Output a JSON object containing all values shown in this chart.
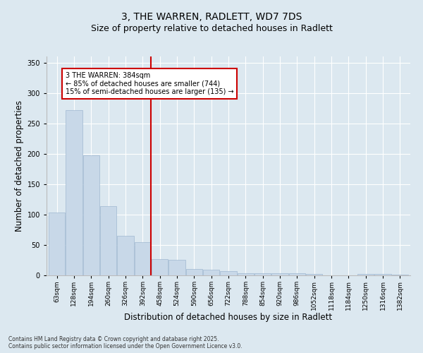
{
  "title1": "3, THE WARREN, RADLETT, WD7 7DS",
  "title2": "Size of property relative to detached houses in Radlett",
  "xlabel": "Distribution of detached houses by size in Radlett",
  "ylabel": "Number of detached properties",
  "categories": [
    "63sqm",
    "128sqm",
    "194sqm",
    "260sqm",
    "326sqm",
    "392sqm",
    "458sqm",
    "524sqm",
    "590sqm",
    "656sqm",
    "722sqm",
    "788sqm",
    "854sqm",
    "920sqm",
    "986sqm",
    "1052sqm",
    "1118sqm",
    "1184sqm",
    "1250sqm",
    "1316sqm",
    "1382sqm"
  ],
  "values": [
    103,
    272,
    197,
    114,
    65,
    55,
    27,
    26,
    11,
    9,
    7,
    4,
    4,
    4,
    4,
    2,
    0,
    0,
    2,
    2,
    1
  ],
  "bar_color": "#c8d8e8",
  "bar_edge_color": "#a0b8d0",
  "vline_x": 5.5,
  "vline_color": "#cc0000",
  "annotation_text": "3 THE WARREN: 384sqm\n← 85% of detached houses are smaller (744)\n15% of semi-detached houses are larger (135) →",
  "annotation_box_color": "#ffffff",
  "annotation_box_edge": "#cc0000",
  "ylim": [
    0,
    360
  ],
  "yticks": [
    0,
    50,
    100,
    150,
    200,
    250,
    300,
    350
  ],
  "bg_color": "#dce8f0",
  "footer": "Contains HM Land Registry data © Crown copyright and database right 2025.\nContains public sector information licensed under the Open Government Licence v3.0.",
  "title1_fontsize": 10,
  "title2_fontsize": 9,
  "tick_fontsize": 6.5,
  "xlabel_fontsize": 8.5,
  "ylabel_fontsize": 8.5,
  "footer_fontsize": 5.5
}
